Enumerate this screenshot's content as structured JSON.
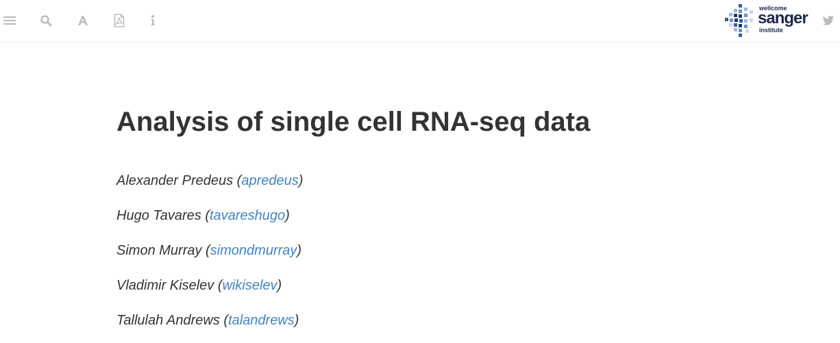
{
  "toolbar": {
    "icons": [
      "menu-icon",
      "search-icon",
      "font-icon",
      "pdf-icon",
      "info-icon",
      "twitter-icon"
    ],
    "icon_color": "#bbbbbb",
    "logo": {
      "line1": "wellcome",
      "line2": "sanger",
      "line3": "institute",
      "color": "#1d2a4f"
    }
  },
  "main": {
    "title": "Analysis of single cell RNA-seq data",
    "authors": [
      {
        "name": "Alexander Predeus",
        "handle": "apredeus"
      },
      {
        "name": "Hugo Tavares",
        "handle": "tavareshugo"
      },
      {
        "name": "Simon Murray",
        "handle": "simondmurray"
      },
      {
        "name": "Vladimir Kiselev",
        "handle": "wikiselev"
      },
      {
        "name": "Tallulah Andrews",
        "handle": "talandrews"
      }
    ]
  },
  "colors": {
    "text": "#333333",
    "link": "#4183c4",
    "divider": "#e6e6e6"
  }
}
